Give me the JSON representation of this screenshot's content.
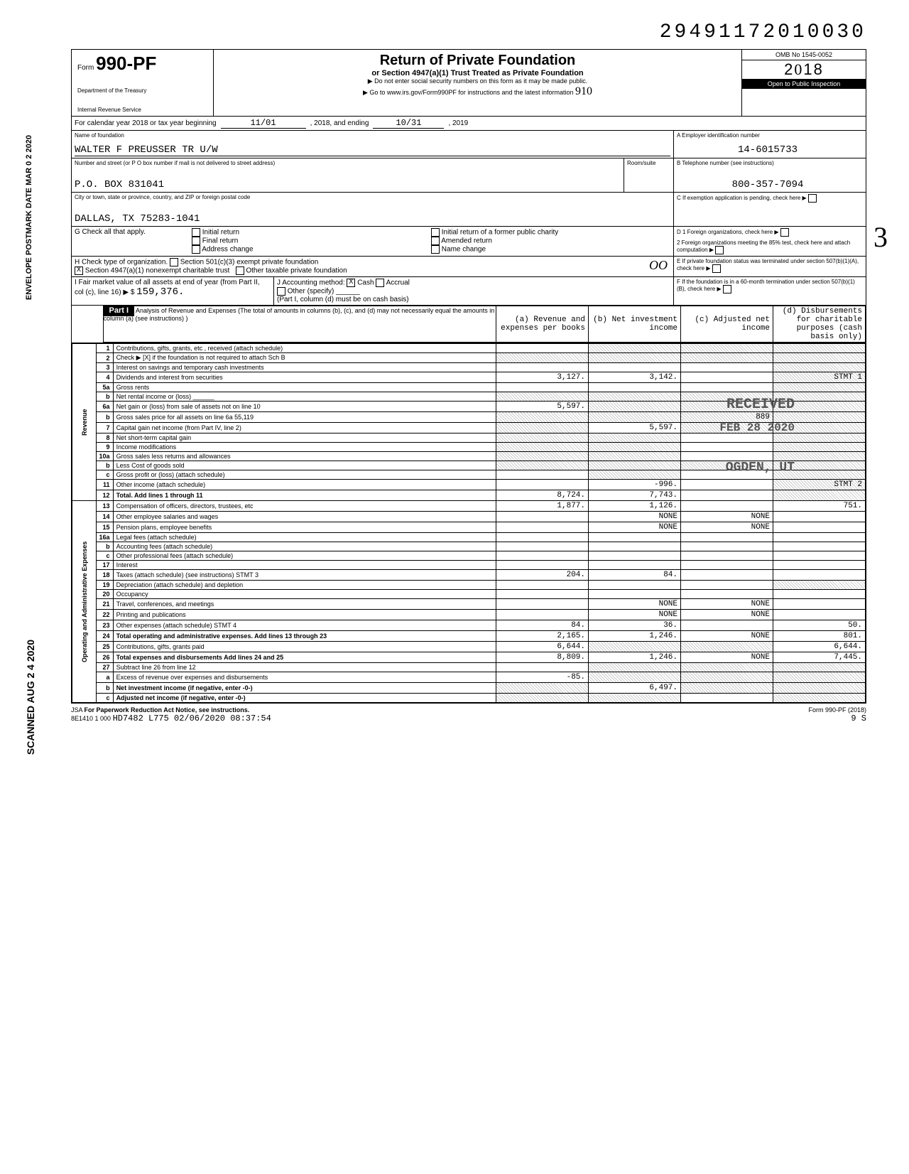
{
  "topNumber": "29491172010030",
  "form": {
    "prefix": "Form",
    "number": "990-PF",
    "dept1": "Department of the Treasury",
    "dept2": "Internal Revenue Service"
  },
  "title": {
    "main": "Return of Private Foundation",
    "sub": "or Section 4947(a)(1) Trust Treated as Private Foundation",
    "warn": "▶ Do not enter social security numbers on this form as it may be made public.",
    "goto": "▶ Go to www.irs.gov/Form990PF for instructions and the latest information"
  },
  "ombYear": {
    "omb": "OMB No 1545-0052",
    "year": "2018",
    "inspect": "Open to Public Inspection"
  },
  "calYear": {
    "label": "For calendar year 2018 or tax year beginning",
    "begin": "11/01",
    "mid": ", 2018, and ending",
    "end": "10/31",
    "endYr": ", 2019"
  },
  "name": {
    "label": "Name of foundation",
    "value": "WALTER F PREUSSER TR U/W"
  },
  "ein": {
    "label": "A  Employer identification number",
    "value": "14-6015733"
  },
  "addr": {
    "label": "Number and street (or P O  box number if mail is not delivered to street address)",
    "room": "Room/suite",
    "value": "P.O. BOX 831041"
  },
  "phone": {
    "label": "B  Telephone number (see instructions)",
    "value": "800-357-7094"
  },
  "city": {
    "label": "City or town, state or province, country, and ZIP or foreign postal code",
    "value": "DALLAS, TX 75283-1041"
  },
  "c": {
    "label": "C  If exemption application is pending, check here"
  },
  "g": {
    "label": "G  Check all that apply.",
    "opts": [
      "Initial return",
      "Final return",
      "Address change",
      "Initial return of a former public charity",
      "Amended return",
      "Name change"
    ]
  },
  "d": {
    "d1": "D  1  Foreign organizations, check here",
    "d2": "2  Foreign organizations meeting the 85% test, check here and attach computation"
  },
  "h": {
    "label": "H  Check type of organization.",
    "o1": "Section 501(c)(3) exempt private foundation",
    "o2": "Section 4947(a)(1) nonexempt charitable trust",
    "o2check": "X",
    "o3": "Other taxable private foundation"
  },
  "e": {
    "label": "E  If private foundation status was terminated under section 507(b)(1)(A), check here"
  },
  "i": {
    "label": "I  Fair market value of all assets at end of year (from Part II, col (c), line 16) ▶ $",
    "value": "159,376."
  },
  "j": {
    "label": "J  Accounting method:",
    "cash": "Cash",
    "cashCheck": "X",
    "accrual": "Accrual",
    "other": "Other (specify)",
    "note": "(Part I, column (d) must be on cash basis)"
  },
  "f": {
    "label": "F  If the foundation is in a 60-month termination under section 507(b)(1)(B), check here"
  },
  "part1": {
    "label": "Part I",
    "title": "Analysis of Revenue and Expenses (The total of amounts in columns (b), (c), and (d) may not necessarily equal the amounts in column (a) (see instructions) )",
    "cols": [
      "(a) Revenue and expenses per books",
      "(b) Net investment income",
      "(c) Adjusted net income",
      "(d) Disbursements for charitable purposes (cash basis only)"
    ]
  },
  "sideLabels": {
    "rev": "Revenue",
    "exp": "Operating and Administrative Expenses"
  },
  "rows": [
    {
      "n": "1",
      "d": "Contributions, gifts, grants, etc , received (attach schedule)",
      "a": "",
      "b": "",
      "c": "",
      "dcol": "",
      "sh": [
        "b",
        "c",
        "dcol"
      ]
    },
    {
      "n": "2",
      "d": "Check ▶ [X] if the foundation is not required to attach Sch B",
      "a": "",
      "b": "",
      "c": "",
      "dcol": "",
      "sh": [
        "a",
        "b",
        "c",
        "dcol"
      ]
    },
    {
      "n": "3",
      "d": "Interest on savings and temporary cash investments",
      "a": "",
      "b": "",
      "c": "",
      "dcol": "",
      "sh": [
        "dcol"
      ]
    },
    {
      "n": "4",
      "d": "Dividends and interest from securities",
      "a": "3,127.",
      "b": "3,142.",
      "c": "",
      "dcol": "STMT 1",
      "sh": [
        "dcol"
      ]
    },
    {
      "n": "5a",
      "d": "Gross rents",
      "a": "",
      "b": "",
      "c": "",
      "dcol": "",
      "sh": [
        "dcol"
      ]
    },
    {
      "n": "b",
      "d": "Net rental income or (loss) ______",
      "a": "",
      "b": "",
      "c": "",
      "dcol": "",
      "sh": [
        "a",
        "b",
        "c",
        "dcol"
      ]
    },
    {
      "n": "6a",
      "d": "Net gain or (loss) from sale of assets not on line 10",
      "a": "5,597.",
      "b": "",
      "c": "",
      "dcol": "",
      "sh": [
        "b",
        "c",
        "dcol"
      ]
    },
    {
      "n": "b",
      "d": "Gross sales price for all assets on line 6a     55,119",
      "a": "",
      "b": "",
      "c": "889",
      "dcol": "",
      "sh": [
        "a",
        "b",
        "c",
        "dcol"
      ]
    },
    {
      "n": "7",
      "d": "Capital gain net income (from Part IV, line 2)",
      "a": "",
      "b": "5,597.",
      "c": "",
      "dcol": "",
      "sh": [
        "a",
        "c",
        "dcol"
      ]
    },
    {
      "n": "8",
      "d": "Net short-term capital gain",
      "a": "",
      "b": "",
      "c": "",
      "dcol": "",
      "sh": [
        "a",
        "b",
        "dcol"
      ]
    },
    {
      "n": "9",
      "d": "Income modifications",
      "a": "",
      "b": "",
      "c": "",
      "dcol": "",
      "sh": [
        "a",
        "b",
        "dcol"
      ]
    },
    {
      "n": "10a",
      "d": "Gross sales less returns and allowances",
      "a": "",
      "b": "",
      "c": "",
      "dcol": "",
      "sh": [
        "a",
        "b",
        "dcol"
      ]
    },
    {
      "n": "b",
      "d": "Less Cost of goods sold",
      "a": "",
      "b": "",
      "c": "",
      "dcol": "",
      "sh": [
        "a",
        "b",
        "c",
        "dcol"
      ]
    },
    {
      "n": "c",
      "d": "Gross profit or (loss) (attach schedule)",
      "a": "",
      "b": "",
      "c": "",
      "dcol": "",
      "sh": [
        "b",
        "dcol"
      ]
    },
    {
      "n": "11",
      "d": "Other income (attach schedule)",
      "a": "",
      "b": "-996.",
      "c": "",
      "dcol": "STMT 2",
      "sh": [
        "dcol"
      ]
    },
    {
      "n": "12",
      "d": "Total. Add lines 1 through 11",
      "a": "8,724.",
      "b": "7,743.",
      "c": "",
      "dcol": "",
      "sh": [
        "dcol"
      ],
      "bold": true
    },
    {
      "n": "13",
      "d": "Compensation of officers, directors, trustees, etc",
      "a": "1,877.",
      "b": "1,126.",
      "c": "",
      "dcol": "751."
    },
    {
      "n": "14",
      "d": "Other employee salaries and wages",
      "a": "",
      "b": "NONE",
      "c": "NONE",
      "dcol": ""
    },
    {
      "n": "15",
      "d": "Pension plans, employee benefits",
      "a": "",
      "b": "NONE",
      "c": "NONE",
      "dcol": ""
    },
    {
      "n": "16a",
      "d": "Legal fees (attach schedule)",
      "a": "",
      "b": "",
      "c": "",
      "dcol": ""
    },
    {
      "n": "b",
      "d": "Accounting fees (attach schedule)",
      "a": "",
      "b": "",
      "c": "",
      "dcol": ""
    },
    {
      "n": "c",
      "d": "Other professional fees (attach schedule)",
      "a": "",
      "b": "",
      "c": "",
      "dcol": ""
    },
    {
      "n": "17",
      "d": "Interest",
      "a": "",
      "b": "",
      "c": "",
      "dcol": ""
    },
    {
      "n": "18",
      "d": "Taxes (attach schedule) (see instructions) STMT 3",
      "a": "204.",
      "b": "84.",
      "c": "",
      "dcol": ""
    },
    {
      "n": "19",
      "d": "Depreciation (attach schedule) and depletion",
      "a": "",
      "b": "",
      "c": "",
      "dcol": "",
      "sh": [
        "dcol"
      ]
    },
    {
      "n": "20",
      "d": "Occupancy",
      "a": "",
      "b": "",
      "c": "",
      "dcol": ""
    },
    {
      "n": "21",
      "d": "Travel, conferences, and meetings",
      "a": "",
      "b": "NONE",
      "c": "NONE",
      "dcol": ""
    },
    {
      "n": "22",
      "d": "Printing and publications",
      "a": "",
      "b": "NONE",
      "c": "NONE",
      "dcol": ""
    },
    {
      "n": "23",
      "d": "Other expenses (attach schedule) STMT 4",
      "a": "84.",
      "b": "36.",
      "c": "",
      "dcol": "50."
    },
    {
      "n": "24",
      "d": "Total operating and administrative expenses. Add lines 13 through 23",
      "a": "2,165.",
      "b": "1,246.",
      "c": "NONE",
      "dcol": "801.",
      "bold": true
    },
    {
      "n": "25",
      "d": "Contributions, gifts, grants paid",
      "a": "6,644.",
      "b": "",
      "c": "",
      "dcol": "6,644.",
      "sh": [
        "b",
        "c"
      ]
    },
    {
      "n": "26",
      "d": "Total expenses and disbursements Add lines 24 and 25",
      "a": "8,809.",
      "b": "1,246.",
      "c": "NONE",
      "dcol": "7,445.",
      "bold": true
    },
    {
      "n": "27",
      "d": "Subtract line 26 from line 12",
      "a": "",
      "b": "",
      "c": "",
      "dcol": "",
      "sh": [
        "b",
        "c",
        "dcol"
      ]
    },
    {
      "n": "a",
      "d": "Excess of revenue over expenses and disbursements",
      "a": "-85.",
      "b": "",
      "c": "",
      "dcol": "",
      "sh": [
        "b",
        "c",
        "dcol"
      ]
    },
    {
      "n": "b",
      "d": "Net investment income (if negative, enter -0-)",
      "a": "",
      "b": "6,497.",
      "c": "",
      "dcol": "",
      "sh": [
        "a",
        "c",
        "dcol"
      ],
      "bold": true
    },
    {
      "n": "c",
      "d": "Adjusted net income (if negative, enter -0-)",
      "a": "",
      "b": "",
      "c": "",
      "dcol": "",
      "sh": [
        "a",
        "b",
        "dcol"
      ],
      "bold": true
    }
  ],
  "footer": {
    "jsa": "JSA",
    "paperwork": "For Paperwork Reduction Act Notice, see instructions.",
    "code": "8E1410 1 000",
    "stamp": "HD7482 L775 02/06/2020 08:37:54",
    "form": "Form 990-PF (2018)",
    "seq": "9    S"
  },
  "stamps": {
    "postmark": "ENVELOPE POSTMARK DATE  MAR 0 2 2020",
    "scanned": "SCANNED AUG 2 4 2020",
    "received": "RECEIVED",
    "recDate": "FEB 28 2020",
    "ogden": "OGDEN, UT",
    "hand": "3",
    "handOO": "OO",
    "hand910": "910"
  }
}
